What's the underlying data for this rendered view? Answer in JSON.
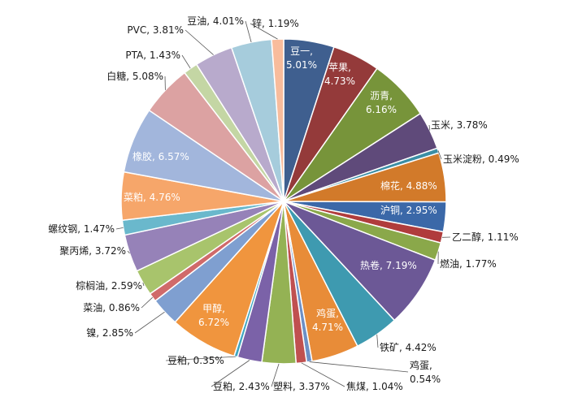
{
  "chart_data": {
    "type": "pie",
    "title": "",
    "slices": [
      {
        "name": "豆一",
        "value": 5.01,
        "color": "#3f5f8f"
      },
      {
        "name": "苹果",
        "value": 4.73,
        "color": "#943a3a"
      },
      {
        "name": "沥青",
        "value": 6.16,
        "color": "#77943a"
      },
      {
        "name": "玉米",
        "value": 3.78,
        "color": "#5f4a7a"
      },
      {
        "name": "玉米淀粉",
        "value": 0.49,
        "color": "#3b8ea5"
      },
      {
        "name": "棉花",
        "value": 4.88,
        "color": "#d27a2a"
      },
      {
        "name": "沪铜",
        "value": 2.95,
        "color": "#3b68a8"
      },
      {
        "name": "乙二醇",
        "value": 1.11,
        "color": "#b03c3c"
      },
      {
        "name": "燃油",
        "value": 1.77,
        "color": "#8aa84a"
      },
      {
        "name": "热卷",
        "value": 7.19,
        "color": "#6c5896"
      },
      {
        "name": "铁矿",
        "value": 4.42,
        "color": "#3e9ab0"
      },
      {
        "name": "鸡蛋",
        "value": 4.71,
        "color": "#e88c38"
      },
      {
        "name": "鸡蛋",
        "value": 0.54,
        "color": "#6c8fc6"
      },
      {
        "name": "焦煤",
        "value": 1.04,
        "color": "#c05050"
      },
      {
        "name": "塑料",
        "value": 3.37,
        "color": "#94b254"
      },
      {
        "name": "豆粕",
        "value": 2.43,
        "color": "#7b62a8"
      },
      {
        "name": "豆粕",
        "value": 0.35,
        "color": "#40a6c0"
      },
      {
        "name": "甲醇",
        "value": 6.72,
        "color": "#f0953e"
      },
      {
        "name": "镍",
        "value": 2.85,
        "color": "#7f9fd0"
      },
      {
        "name": "菜油",
        "value": 0.86,
        "color": "#d06a6a"
      },
      {
        "name": "棕榈油",
        "value": 2.59,
        "color": "#a8c46c"
      },
      {
        "name": "聚丙烯",
        "value": 3.72,
        "color": "#9682b8"
      },
      {
        "name": "螺纹钢",
        "value": 1.47,
        "color": "#6ab8cc"
      },
      {
        "name": "菜粕",
        "value": 4.76,
        "color": "#f6a66a"
      },
      {
        "name": "橡胶",
        "value": 6.57,
        "color": "#a2b6dc"
      },
      {
        "name": "白糖",
        "value": 5.08,
        "color": "#dca2a2"
      },
      {
        "name": "PTA",
        "value": 1.43,
        "color": "#c4d6a4"
      },
      {
        "name": "PVC",
        "value": 3.81,
        "color": "#b8aacc"
      },
      {
        "name": "豆油",
        "value": 4.01,
        "color": "#a6ccdc"
      },
      {
        "name": "锌",
        "value": 1.19,
        "color": "#f8bc9c"
      }
    ],
    "value_format": "percent",
    "legend": "none"
  }
}
